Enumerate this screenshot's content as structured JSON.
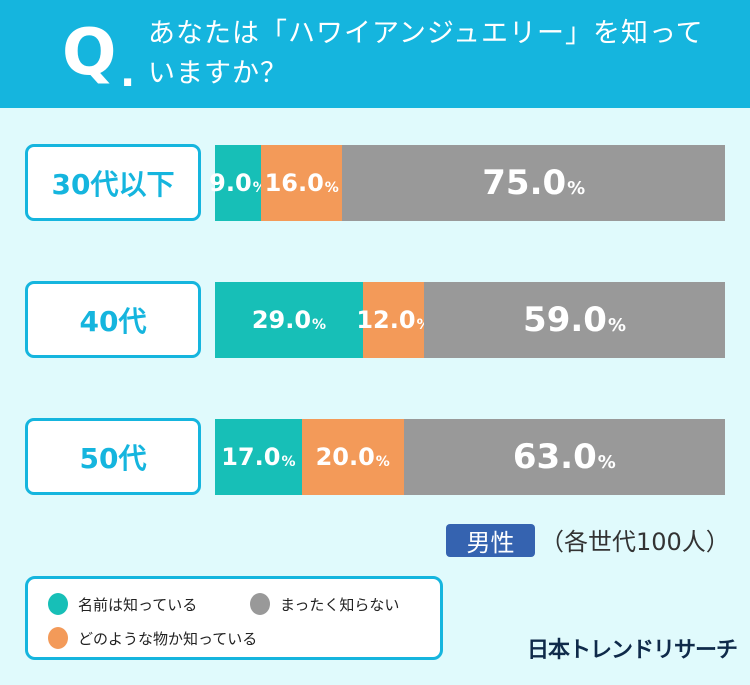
{
  "header": {
    "q": "Q",
    "dot": ".",
    "title": "あなたは「ハワイアンジュエリー」を知っていますか？"
  },
  "chart_data": {
    "type": "bar",
    "orientation": "horizontal-stacked-100",
    "categories": [
      "30代以下",
      "40代",
      "50代"
    ],
    "series": [
      {
        "name": "名前は知っている",
        "color": "#17bfb7",
        "values": [
          9.0,
          29.0,
          17.0
        ]
      },
      {
        "name": "どのような物か知っている",
        "color": "#f39a59",
        "values": [
          16.0,
          12.0,
          20.0
        ]
      },
      {
        "name": "まったく知らない",
        "color": "#999999",
        "values": [
          75.0,
          59.0,
          63.0
        ]
      }
    ],
    "unit": "%",
    "legend_position": "bottom-left"
  },
  "tag": "男性",
  "note": "（各世代100人）",
  "legend": [
    {
      "label": "名前は知っている",
      "color": "#17bfb7"
    },
    {
      "label": "まったく知らない",
      "color": "#999999"
    },
    {
      "label": "どのような物か知っている",
      "color": "#f39a59"
    }
  ],
  "logo": "日本トレンドリサーチ"
}
